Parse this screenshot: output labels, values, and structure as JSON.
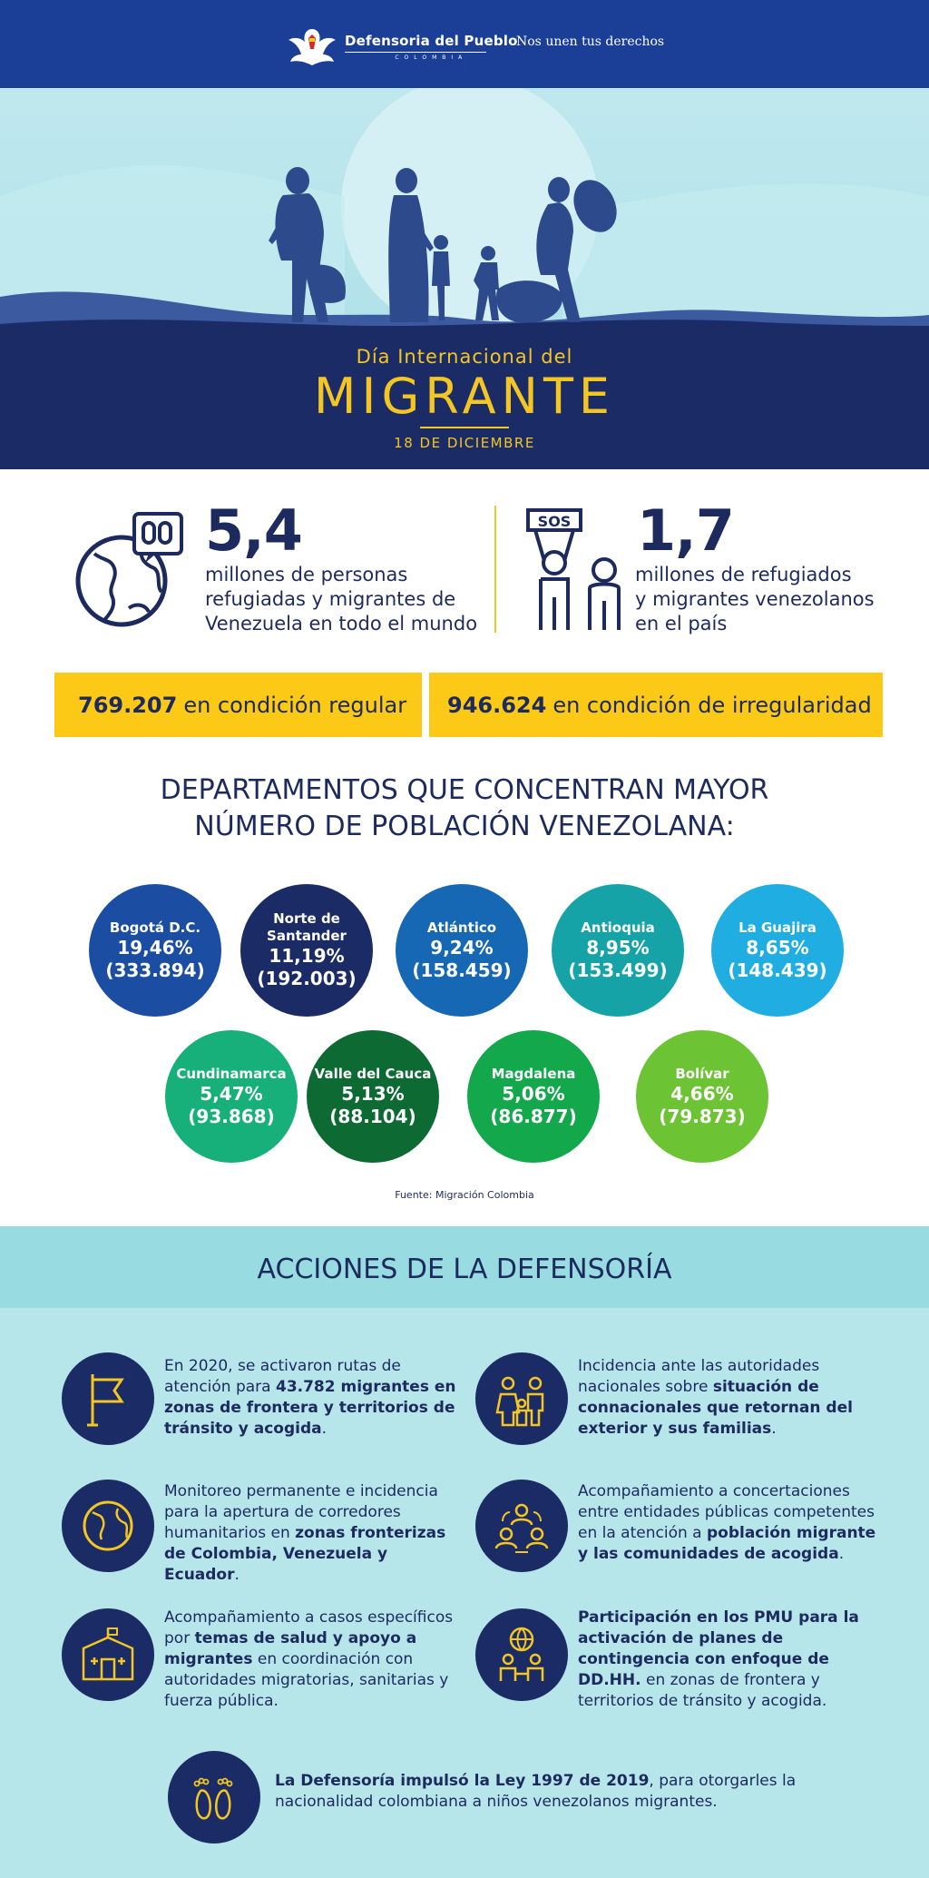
{
  "header": {
    "org_name": "Defensoria del Pueblo",
    "org_country": "COLOMBIA",
    "tagline": "Nos unen tus derechos"
  },
  "hero": {
    "subtitle": "Día Internacional del",
    "title": "MIGRANTE",
    "date": "18 DE DICIEMBRE"
  },
  "stats": [
    {
      "number": "5,4",
      "lines": [
        "millones de personas",
        "refugiadas y migrantes de",
        "Venezuela en todo el mundo"
      ],
      "icon": "globe-chain-icon"
    },
    {
      "number": "1,7",
      "lines": [
        "millones de refugiados",
        "y migrantes venezolanos",
        "en el país"
      ],
      "icon": "sos-people-icon"
    }
  ],
  "status_boxes": [
    {
      "value": "769.207",
      "label": "en condición regular"
    },
    {
      "value": "946.624",
      "label": "en condición de irregularidad"
    }
  ],
  "departments_title": [
    "DEPARTAMENTOS QUE CONCENTRAN MAYOR",
    "NÚMERO DE POBLACIÓN VENEZOLANA:"
  ],
  "departments": [
    {
      "name": "Bogotá D.C.",
      "percent": "19,46%",
      "count": "(333.894)",
      "color": "#1b4ea3"
    },
    {
      "name": "Norte de Santander",
      "name_lines": [
        "Norte de",
        "Santander"
      ],
      "percent": "11,19%",
      "count": "(192.003)",
      "color": "#1b2b66"
    },
    {
      "name": "Atlántico",
      "percent": "9,24%",
      "count": "(158.459)",
      "color": "#1668b5"
    },
    {
      "name": "Antioquia",
      "percent": "8,95%",
      "count": "(153.499)",
      "color": "#16a3a8"
    },
    {
      "name": "La Guajira",
      "percent": "8,65%",
      "count": "(148.439)",
      "color": "#1fade2"
    },
    {
      "name": "Cundinamarca",
      "percent": "5,47%",
      "count": "(93.868)",
      "color": "#17b07a"
    },
    {
      "name": "Valle del Cauca",
      "percent": "5,13%",
      "count": "(88.104)",
      "color": "#0c6a32"
    },
    {
      "name": "Magdalena",
      "percent": "5,06%",
      "count": "(86.877)",
      "color": "#12a84b"
    },
    {
      "name": "Bolívar",
      "percent": "4,66%",
      "count": "(79.873)",
      "color": "#6cc334"
    }
  ],
  "source": "Fuente: Migración Colombia",
  "actions_title": "ACCIONES DE LA DEFENSORÍA",
  "actions": [
    {
      "icon": "flag-icon",
      "segments": [
        {
          "t": "En 2020, se activaron rutas de atención para ",
          "b": false
        },
        {
          "t": "43.782 migrantes en zonas de frontera y territorios de tránsito y acogida",
          "b": true
        },
        {
          "t": ".",
          "b": false
        }
      ]
    },
    {
      "icon": "family-icon",
      "segments": [
        {
          "t": "Incidencia ante las autoridades nacionales sobre ",
          "b": false
        },
        {
          "t": "situación de connacionales que retornan del exterior y sus familias",
          "b": true
        },
        {
          "t": ".",
          "b": false
        }
      ]
    },
    {
      "icon": "globe-icon",
      "segments": [
        {
          "t": "Monitoreo permanente e incidencia para la apertura de corredores humanitarios en ",
          "b": false
        },
        {
          "t": "zonas fronterizas de Colombia, Venezuela y Ecuador",
          "b": true
        },
        {
          "t": ".",
          "b": false
        }
      ]
    },
    {
      "icon": "group-meeting-icon",
      "segments": [
        {
          "t": "Acompañamiento a concertaciones entre entidades públicas competentes en la atención a ",
          "b": false
        },
        {
          "t": "población migrante y las comunidades de acogida",
          "b": true
        },
        {
          "t": ".",
          "b": false
        }
      ]
    },
    {
      "icon": "health-tent-icon",
      "segments": [
        {
          "t": "Acompañamiento a casos específicos por ",
          "b": false
        },
        {
          "t": "temas de salud y apoyo a migrantes",
          "b": true
        },
        {
          "t": " en coordinación con autoridades migratorias, sanitarias y fuerza pública.",
          "b": false
        }
      ]
    },
    {
      "icon": "globe-people-icon",
      "segments": [
        {
          "t": "Participación en los PMU para la activación de planes de contingencia con enfoque de DD.HH.",
          "b": true
        },
        {
          "t": " en zonas de frontera y territorios de tránsito y acogida.",
          "b": false
        }
      ]
    },
    {
      "icon": "footprints-icon",
      "segments": [
        {
          "t": "La Defensoría impulsó la Ley 1997 de 2019",
          "b": true
        },
        {
          "t": ", para otorgarles la nacionalidad colombiana a niños venezolanos migrantes.",
          "b": false
        }
      ]
    }
  ]
}
